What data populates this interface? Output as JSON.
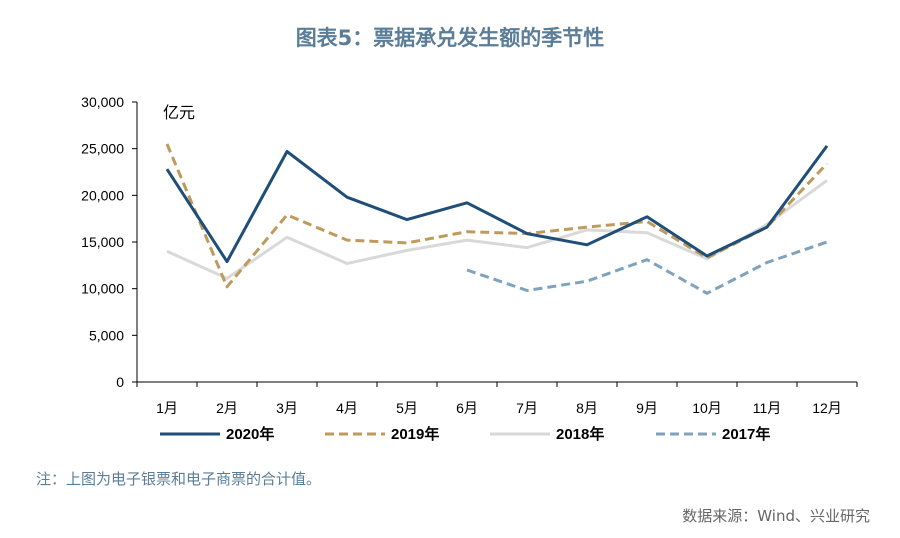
{
  "title": "图表5：票据承兑发生额的季节性",
  "note": "注：上图为电子银票和电子商票的合计值。",
  "source": "数据来源：Wind、兴业研究",
  "chart_data": {
    "type": "line",
    "title": "图表5：票据承兑发生额的季节性",
    "ylabel": "亿元",
    "xlabel": "",
    "ylim": [
      0,
      30000
    ],
    "yticks": [
      "0",
      "5,000",
      "10,000",
      "15,000",
      "20,000",
      "25,000",
      "30,000"
    ],
    "ytick_values": [
      0,
      5000,
      10000,
      15000,
      20000,
      25000,
      30000
    ],
    "categories": [
      "1月",
      "2月",
      "3月",
      "4月",
      "5月",
      "6月",
      "7月",
      "8月",
      "9月",
      "10月",
      "11月",
      "12月"
    ],
    "legend_position": "bottom",
    "grid": false,
    "series": [
      {
        "name": "2020年",
        "color": "#1f4e79",
        "dash": "solid",
        "values": [
          22800,
          12900,
          24700,
          19800,
          17400,
          19200,
          15900,
          14700,
          17700,
          13500,
          16600,
          25300
        ]
      },
      {
        "name": "2019年",
        "color": "#c09a5c",
        "dash": "dashed",
        "values": [
          25500,
          10200,
          17900,
          15200,
          14900,
          16100,
          15900,
          16600,
          17200,
          13300,
          16600,
          23400
        ]
      },
      {
        "name": "2018年",
        "color": "#d9d9d9",
        "dash": "solid",
        "values": [
          14000,
          11100,
          15500,
          12700,
          14100,
          15200,
          14400,
          16300,
          16000,
          13200,
          16900,
          21600
        ]
      },
      {
        "name": "2017年",
        "color": "#7fa2bd",
        "dash": "dashed",
        "values": [
          null,
          null,
          null,
          null,
          null,
          12000,
          9800,
          10800,
          13100,
          9500,
          12800,
          15000
        ]
      }
    ]
  }
}
